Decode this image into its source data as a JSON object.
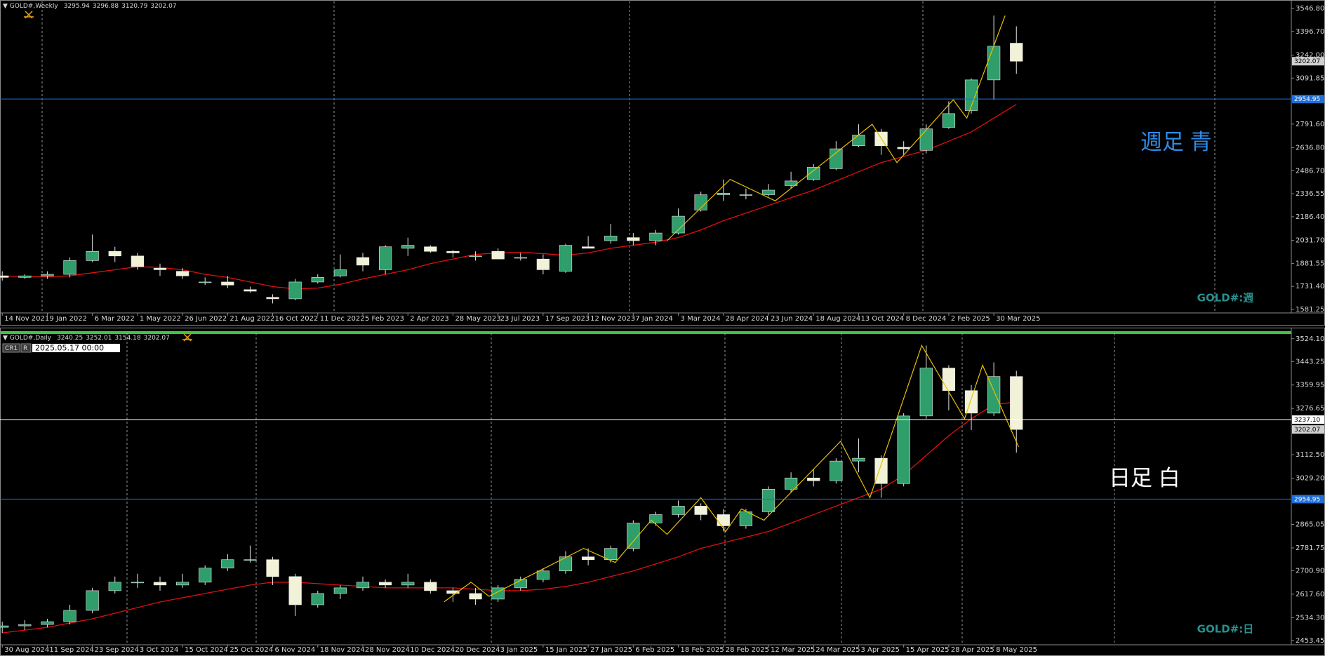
{
  "chart_data": [
    {
      "type": "candlestick",
      "header": {
        "symbol": "GOLD#,Weekly",
        "ohlc": [
          3295.94,
          3296.88,
          3120.79,
          3202.07
        ]
      },
      "xlim": [
        -0.1,
        57.2
      ],
      "xticks": [
        {
          "value": 0,
          "label": "14 Nov 2021"
        },
        {
          "value": 2,
          "label": "9 Jan 2022"
        },
        {
          "value": 4,
          "label": "6 Mar 2022"
        },
        {
          "value": 6,
          "label": "1 May 2022"
        },
        {
          "value": 8,
          "label": "26 Jun 2022"
        },
        {
          "value": 10,
          "label": "21 Aug 2022"
        },
        {
          "value": 12,
          "label": "16 Oct 2022"
        },
        {
          "value": 14,
          "label": "11 Dec 2022"
        },
        {
          "value": 16,
          "label": "5 Feb 2023"
        },
        {
          "value": 18,
          "label": "2 Apr 2023"
        },
        {
          "value": 20,
          "label": "28 May 2023"
        },
        {
          "value": 22,
          "label": "23 Jul 2023"
        },
        {
          "value": 24,
          "label": "17 Sep 2023"
        },
        {
          "value": 26,
          "label": "12 Nov 2023"
        },
        {
          "value": 28,
          "label": "7 Jan 2024"
        },
        {
          "value": 30,
          "label": "3 Mar 2024"
        },
        {
          "value": 32,
          "label": "28 Apr 2024"
        },
        {
          "value": 34,
          "label": "23 Jun 2024"
        },
        {
          "value": 36,
          "label": "18 Aug 2024"
        },
        {
          "value": 38,
          "label": "13 Oct 2024"
        },
        {
          "value": 40,
          "label": "8 Dec 2024"
        },
        {
          "value": 42,
          "label": "2 Feb 2025"
        },
        {
          "value": 44,
          "label": "30 Mar 2025"
        }
      ],
      "ylim": [
        1558,
        3579
      ],
      "yticks": [
        {
          "value": 3546.8,
          "label": "3546.80"
        },
        {
          "value": 3396.7,
          "label": "3396.70"
        },
        {
          "value": 3242,
          "label": "3242.00"
        },
        3091.85,
        {
          "value": 2791.6,
          "label": "2791.60"
        },
        {
          "value": 2636.8,
          "label": "2636.80"
        },
        {
          "value": 2486.7,
          "label": "2486.70"
        },
        2336.55,
        {
          "value": 2186.4,
          "label": "2186.40"
        },
        {
          "value": 2031.7,
          "label": "2031.70"
        },
        1881.55,
        {
          "value": 1731.4,
          "label": "1731.40"
        },
        1581.25
      ],
      "up_color": "#2f9e6b",
      "down_color": "#f2f2d8",
      "open": [
        1800,
        1790,
        1800,
        1810,
        1900,
        1960,
        1930,
        1850,
        1830,
        1760,
        1760,
        1710,
        1660,
        1650,
        1760,
        1800,
        1920,
        1840,
        1980,
        1990,
        1960,
        1930,
        1960,
        1920,
        1910,
        1830,
        1990,
        2030,
        2050,
        2030,
        2080,
        2230,
        2330,
        2330,
        2330,
        2390,
        2430,
        2500,
        2650,
        2740,
        2640,
        2620,
        2770,
        2880,
        3080,
        3320
      ],
      "high": [
        1830,
        1810,
        1830,
        1920,
        2070,
        1990,
        1950,
        1880,
        1850,
        1790,
        1800,
        1730,
        1680,
        1780,
        1810,
        1940,
        1950,
        2000,
        2050,
        2000,
        1970,
        1960,
        1980,
        1950,
        1940,
        2010,
        2060,
        2140,
        2080,
        2100,
        2240,
        2350,
        2430,
        2370,
        2400,
        2480,
        2530,
        2680,
        2790,
        2760,
        2680,
        2790,
        2940,
        3090,
        3500,
        3430
      ],
      "low": [
        1770,
        1780,
        1780,
        1790,
        1890,
        1890,
        1840,
        1800,
        1780,
        1740,
        1720,
        1690,
        1620,
        1640,
        1750,
        1790,
        1830,
        1810,
        1930,
        1950,
        1920,
        1900,
        1910,
        1900,
        1810,
        1820,
        1980,
        2010,
        2000,
        2000,
        2070,
        2220,
        2290,
        2300,
        2320,
        2370,
        2420,
        2490,
        2640,
        2590,
        2590,
        2600,
        2760,
        2860,
        2950,
        3120
      ],
      "close": [
        1790,
        1800,
        1810,
        1900,
        1960,
        1930,
        1860,
        1840,
        1800,
        1760,
        1740,
        1700,
        1650,
        1760,
        1790,
        1840,
        1870,
        1990,
        2000,
        1960,
        1950,
        1930,
        1910,
        1920,
        1840,
        2000,
        1980,
        2060,
        2030,
        2080,
        2190,
        2330,
        2340,
        2330,
        2360,
        2420,
        2510,
        2630,
        2720,
        2650,
        2630,
        2760,
        2860,
        3080,
        3300,
        3202
      ],
      "ma": {
        "color": "#e01010",
        "values": [
          1800,
          1795,
          1795,
          1800,
          1820,
          1840,
          1860,
          1855,
          1840,
          1810,
          1790,
          1760,
          1730,
          1715,
          1720,
          1745,
          1780,
          1810,
          1840,
          1880,
          1910,
          1940,
          1950,
          1955,
          1945,
          1935,
          1950,
          1980,
          2000,
          2020,
          2050,
          2100,
          2160,
          2210,
          2260,
          2310,
          2360,
          2420,
          2480,
          2540,
          2580,
          2620,
          2680,
          2740,
          2830,
          2920
        ]
      },
      "zigzag": {
        "color": "#e8c000",
        "x": [
          29.5,
          32.3,
          34.3,
          38.6,
          39.7,
          42.2,
          42.8,
          44.5
        ],
        "values": [
          2030,
          2430,
          2290,
          2790,
          2540,
          2950,
          2830,
          3500
        ]
      },
      "hlines": [
        {
          "value": 2954.95,
          "color": "#1e6fd9"
        }
      ],
      "price_label": 3202.07,
      "annotation": "週足 青",
      "annotation_color": "#2f8ae6",
      "watermark": "GOLD#:週"
    },
    {
      "type": "candlestick",
      "header": {
        "symbol": "GOLD#,Daily",
        "ohlc": [
          3240.25,
          3252.01,
          3154.18,
          3202.07
        ]
      },
      "cursor": {
        "tags": [
          "CR1",
          "R"
        ],
        "time": "2025.05.17 00:00"
      },
      "xlim": [
        -0.1,
        57.2
      ],
      "xticks": [
        {
          "value": 0,
          "label": "30 Aug 2024"
        },
        {
          "value": 2,
          "label": "11 Sep 2024"
        },
        {
          "value": 4,
          "label": "23 Sep 2024"
        },
        {
          "value": 6,
          "label": "3 Oct 2024"
        },
        {
          "value": 8,
          "label": "15 Oct 2024"
        },
        {
          "value": 10,
          "label": "25 Oct 2024"
        },
        {
          "value": 12,
          "label": "6 Nov 2024"
        },
        {
          "value": 14,
          "label": "18 Nov 2024"
        },
        {
          "value": 16,
          "label": "28 Nov 2024"
        },
        {
          "value": 18,
          "label": "10 Dec 2024"
        },
        {
          "value": 20,
          "label": "20 Dec 2024"
        },
        {
          "value": 22,
          "label": "3 Jan 2025"
        },
        {
          "value": 24,
          "label": "15 Jan 2025"
        },
        {
          "value": 26,
          "label": "27 Jan 2025"
        },
        {
          "value": 28,
          "label": "6 Feb 2025"
        },
        {
          "value": 30,
          "label": "18 Feb 2025"
        },
        {
          "value": 32,
          "label": "28 Feb 2025"
        },
        {
          "value": 34,
          "label": "12 Mar 2025"
        },
        {
          "value": 36,
          "label": "24 Mar 2025"
        },
        {
          "value": 38,
          "label": "3 Apr 2025"
        },
        {
          "value": 40,
          "label": "15 Apr 2025"
        },
        {
          "value": 42,
          "label": "28 Apr 2025"
        },
        {
          "value": 44,
          "label": "8 May 2025"
        }
      ],
      "ylim": [
        2438,
        3536
      ],
      "yticks": [
        {
          "value": 3524.1,
          "label": "3524.10"
        },
        3443.25,
        3359.95,
        3276.65,
        {
          "value": 3112.5,
          "label": "3112.50"
        },
        {
          "value": 3029.2,
          "label": "3029.20"
        },
        2865.05,
        2781.75,
        {
          "value": 2700.9,
          "label": "2700.90"
        },
        {
          "value": 2617.6,
          "label": "2617.60"
        },
        {
          "value": 2534.3,
          "label": "2534.30"
        },
        2453.45
      ],
      "up_color": "#2f9e6b",
      "down_color": "#f2f2d8",
      "open": [
        2500,
        2505,
        2510,
        2520,
        2560,
        2630,
        2660,
        2660,
        2650,
        2660,
        2710,
        2740,
        2740,
        2680,
        2580,
        2620,
        2640,
        2660,
        2650,
        2660,
        2630,
        2620,
        2600,
        2640,
        2670,
        2700,
        2750,
        2740,
        2780,
        2870,
        2900,
        2930,
        2900,
        2860,
        2910,
        2990,
        3030,
        3020,
        3090,
        3100,
        3010,
        3250,
        3420,
        3340,
        3260,
        3390
      ],
      "high": [
        2520,
        2525,
        2530,
        2580,
        2640,
        2680,
        2690,
        2680,
        2690,
        2720,
        2760,
        2790,
        2750,
        2690,
        2630,
        2650,
        2680,
        2670,
        2690,
        2670,
        2640,
        2640,
        2650,
        2680,
        2710,
        2770,
        2780,
        2790,
        2880,
        2910,
        2950,
        2940,
        2920,
        2920,
        3000,
        3050,
        3060,
        3100,
        3170,
        3110,
        3260,
        3500,
        3430,
        3360,
        3440,
        3410
      ],
      "low": [
        2480,
        2490,
        2500,
        2510,
        2550,
        2620,
        2640,
        2630,
        2640,
        2650,
        2700,
        2730,
        2650,
        2540,
        2570,
        2600,
        2630,
        2640,
        2640,
        2620,
        2590,
        2580,
        2590,
        2630,
        2660,
        2690,
        2720,
        2730,
        2770,
        2860,
        2890,
        2880,
        2840,
        2850,
        2900,
        2980,
        3000,
        3010,
        3050,
        2960,
        3000,
        3240,
        3270,
        3200,
        3250,
        3120
      ],
      "close": [
        2505,
        2510,
        2520,
        2560,
        2630,
        2660,
        2660,
        2650,
        2660,
        2710,
        2740,
        2740,
        2680,
        2580,
        2620,
        2640,
        2660,
        2650,
        2660,
        2630,
        2620,
        2600,
        2640,
        2670,
        2700,
        2750,
        2740,
        2780,
        2870,
        2900,
        2930,
        2900,
        2860,
        2910,
        2990,
        3030,
        3020,
        3090,
        3100,
        3010,
        3250,
        3420,
        3340,
        3260,
        3390,
        3202
      ],
      "ma": {
        "color": "#e01010",
        "values": [
          2480,
          2490,
          2500,
          2515,
          2530,
          2550,
          2570,
          2590,
          2605,
          2620,
          2635,
          2650,
          2660,
          2660,
          2655,
          2650,
          2645,
          2640,
          2640,
          2640,
          2640,
          2635,
          2630,
          2630,
          2635,
          2645,
          2660,
          2680,
          2700,
          2725,
          2750,
          2780,
          2800,
          2820,
          2840,
          2870,
          2900,
          2930,
          2960,
          2990,
          3040,
          3110,
          3180,
          3240,
          3290,
          3300
        ]
      },
      "zigzag": {
        "color": "#e8c000",
        "x": [
          19.6,
          20.8,
          21.6,
          25.8,
          27.2,
          28.8,
          29.5,
          31,
          32.1,
          32.8,
          33.8,
          37.2,
          38.5,
          40.8,
          42.7,
          43.5,
          45.1
        ],
        "values": [
          2590,
          2660,
          2610,
          2780,
          2730,
          2880,
          2830,
          2960,
          2840,
          2920,
          2880,
          3160,
          2960,
          3500,
          3240,
          3430,
          3140
        ]
      },
      "hlines": [
        {
          "value": 3237.1,
          "label": "3237.10",
          "color": "#ffffff"
        },
        {
          "value": 2954.95,
          "color": "#1e6fd9"
        }
      ],
      "price_label": 3202.07,
      "annotation": "日足 白",
      "annotation_color": "#ffffff",
      "watermark": "GOLD#:日"
    }
  ]
}
